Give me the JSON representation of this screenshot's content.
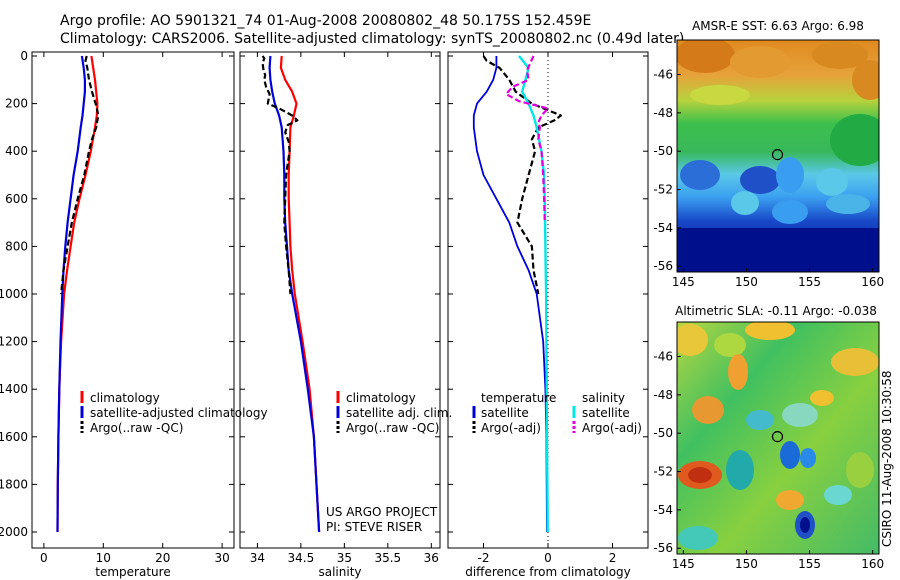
{
  "header": {
    "line1": "Argo profile: AO 5901321_74 01-Aug-2008 20080802_48 50.175S 152.459E",
    "line2": "Climatology: CARS2006. Satellite-adjusted climatology: synTS_20080802.nc (0.49d later)"
  },
  "colors": {
    "climatology": "#ff0000",
    "satellite": "#0000dd",
    "argo": "#000000",
    "salinity_sat": "#00e5e5",
    "salinity_argo": "#e000e0"
  },
  "side_text": "CSIRO 11-Aug-2008 10:30:58",
  "credits": {
    "line1": "US ARGO PROJECT",
    "line2": "PI: STEVE RISER"
  },
  "chart_data": [
    {
      "type": "line",
      "xlabel": "temperature",
      "xlim": [
        -2,
        32
      ],
      "xticks": [
        0,
        10,
        20,
        30
      ],
      "ylim": [
        0,
        2050
      ],
      "yreversed": true,
      "yticks": [
        0,
        200,
        400,
        600,
        800,
        1000,
        1200,
        1400,
        1600,
        1800,
        2000
      ],
      "legend": [
        "climatology",
        "satellite-adjusted climatology",
        "Argo(..raw -QC)"
      ],
      "series": [
        {
          "name": "climatology",
          "y": [
            0,
            50,
            100,
            150,
            200,
            250,
            300,
            400,
            500,
            600,
            700,
            800,
            900,
            1000,
            1200,
            1400,
            1600,
            1800,
            2000
          ],
          "x": [
            8.0,
            8.3,
            8.6,
            8.8,
            9.0,
            8.9,
            8.6,
            7.9,
            7.0,
            6.0,
            5.1,
            4.5,
            3.9,
            3.4,
            2.9,
            2.6,
            2.45,
            2.35,
            2.3
          ]
        },
        {
          "name": "satellite-adjusted climatology",
          "y": [
            0,
            50,
            100,
            150,
            200,
            250,
            300,
            400,
            500,
            600,
            700,
            800,
            900,
            1000,
            1200,
            1400,
            1600,
            1800,
            2000
          ],
          "x": [
            6.4,
            6.7,
            6.9,
            6.9,
            6.7,
            6.5,
            6.2,
            5.7,
            5.0,
            4.5,
            4.0,
            3.6,
            3.3,
            3.1,
            2.8,
            2.6,
            2.45,
            2.35,
            2.3
          ]
        },
        {
          "name": "Argo(..raw -QC)",
          "y": [
            0,
            20,
            50,
            100,
            150,
            200,
            250,
            270,
            300,
            350,
            400,
            500,
            600,
            700,
            800,
            900,
            1000
          ],
          "x": [
            7.2,
            7.0,
            7.3,
            7.6,
            8.1,
            8.7,
            9.2,
            9.0,
            8.8,
            8.1,
            7.6,
            6.8,
            5.7,
            4.7,
            4.0,
            3.3,
            2.9
          ]
        }
      ]
    },
    {
      "type": "line",
      "xlabel": "salinity",
      "xlim": [
        33.8,
        36.1
      ],
      "xticks": [
        34,
        34.5,
        35,
        35.5,
        36
      ],
      "xticklabels": [
        "34",
        "34.5",
        "35",
        "35.5",
        "36"
      ],
      "ylim": [
        0,
        2050
      ],
      "yreversed": true,
      "legend": [
        "climatology",
        "satellite adj. clim.",
        "Argo(..raw -QC)"
      ],
      "series": [
        {
          "name": "climatology",
          "y": [
            0,
            50,
            100,
            150,
            200,
            250,
            300,
            400,
            500,
            600,
            700,
            800,
            900,
            1000,
            1200,
            1400,
            1600,
            1800,
            2000
          ],
          "x": [
            34.28,
            34.27,
            34.32,
            34.4,
            34.45,
            34.42,
            34.38,
            34.37,
            34.36,
            34.36,
            34.37,
            34.38,
            34.4,
            34.43,
            34.52,
            34.6,
            34.65,
            34.68,
            34.71
          ]
        },
        {
          "name": "satellite adj. clim.",
          "y": [
            0,
            50,
            100,
            150,
            200,
            250,
            300,
            400,
            500,
            600,
            700,
            800,
            900,
            1000,
            1200,
            1400,
            1600,
            1800,
            2000
          ],
          "x": [
            34.15,
            34.14,
            34.15,
            34.17,
            34.2,
            34.25,
            34.28,
            34.3,
            34.31,
            34.31,
            34.32,
            34.34,
            34.36,
            34.4,
            34.5,
            34.58,
            34.65,
            34.68,
            34.71
          ]
        },
        {
          "name": "Argo(..raw -QC)",
          "y": [
            0,
            10,
            30,
            60,
            80,
            100,
            130,
            160,
            200,
            220,
            250,
            270,
            290,
            320,
            360,
            400,
            450,
            500,
            600,
            700,
            800,
            900,
            1000
          ],
          "x": [
            34.06,
            34.08,
            34.06,
            34.07,
            34.09,
            34.08,
            34.1,
            34.14,
            34.12,
            34.25,
            34.4,
            34.46,
            34.35,
            34.32,
            34.36,
            34.37,
            34.35,
            34.33,
            34.32,
            34.31,
            34.33,
            34.36,
            34.38
          ]
        }
      ]
    },
    {
      "type": "line",
      "xlabel": "difference from climatology",
      "xlim": [
        -3.1,
        3.1
      ],
      "xticks": [
        -2,
        0,
        2
      ],
      "ylim": [
        0,
        2050
      ],
      "yreversed": true,
      "legend_left_title": "temperature",
      "legend_right_title": "salinity",
      "legend": [
        "satellite",
        "Argo(-adj)",
        "satellite",
        "Argo(-adj)"
      ],
      "series": [
        {
          "name": "satellite",
          "group": "temperature",
          "y": [
            0,
            50,
            100,
            150,
            200,
            250,
            300,
            400,
            500,
            600,
            700,
            800,
            900,
            1000,
            1200,
            1400,
            1600,
            1800,
            2000
          ],
          "x": [
            -1.6,
            -1.6,
            -1.7,
            -1.9,
            -2.2,
            -2.3,
            -2.3,
            -2.2,
            -2.0,
            -1.6,
            -1.2,
            -0.95,
            -0.6,
            -0.35,
            -0.15,
            -0.08,
            -0.05,
            -0.04,
            -0.03
          ]
        },
        {
          "name": "Argo(-adj)",
          "group": "temperature",
          "y": [
            0,
            20,
            50,
            100,
            150,
            200,
            250,
            270,
            300,
            350,
            400,
            500,
            600,
            700,
            800,
            900,
            1000
          ],
          "x": [
            -2.0,
            -1.9,
            -1.5,
            -1.2,
            -1.0,
            -0.5,
            0.4,
            0.2,
            -0.3,
            -0.5,
            -0.4,
            -0.6,
            -0.8,
            -0.95,
            -0.5,
            -0.45,
            -0.3
          ]
        },
        {
          "name": "satellite",
          "group": "salinity",
          "y": [
            0,
            50,
            100,
            150,
            200,
            250,
            300,
            400,
            500,
            600,
            700,
            800,
            900,
            1000,
            1200,
            1400,
            1600,
            1800,
            2000
          ],
          "x": [
            -0.9,
            -0.6,
            -0.7,
            -0.8,
            -0.6,
            -0.45,
            -0.35,
            -0.2,
            -0.12,
            -0.1,
            -0.09,
            -0.08,
            -0.07,
            -0.06,
            -0.05,
            -0.04,
            -0.03,
            -0.02,
            -0.01
          ]
        },
        {
          "name": "Argo(-adj)",
          "group": "salinity",
          "y": [
            0,
            30,
            60,
            100,
            130,
            160,
            190,
            220,
            250,
            280,
            300,
            350,
            400,
            500,
            600,
            700
          ],
          "x": [
            -0.45,
            -0.55,
            -0.65,
            -0.6,
            -1.1,
            -1.3,
            -0.9,
            0.0,
            -0.2,
            -0.3,
            -0.25,
            -0.3,
            -0.2,
            -0.15,
            -0.12,
            -0.1
          ]
        }
      ]
    },
    {
      "type": "heatmap",
      "title": "AMSR-E SST: 6.63 Argo: 6.98",
      "xlim": [
        144.5,
        160.5
      ],
      "ylim": [
        -56.3,
        -44.2
      ],
      "xticks": [
        145,
        150,
        155,
        160
      ],
      "yticks": [
        -46,
        -48,
        -50,
        -52,
        -54,
        -56
      ],
      "marker": {
        "lon": 152.459,
        "lat": -50.175
      }
    },
    {
      "type": "heatmap",
      "title": "Altimetric SLA: -0.11 Argo: -0.038",
      "xlim": [
        144.5,
        160.5
      ],
      "ylim": [
        -56.3,
        -44.2
      ],
      "xticks": [
        145,
        150,
        155,
        160
      ],
      "yticks": [
        -46,
        -48,
        -50,
        -52,
        -54,
        -56
      ],
      "marker": {
        "lon": 152.459,
        "lat": -50.175
      }
    }
  ]
}
